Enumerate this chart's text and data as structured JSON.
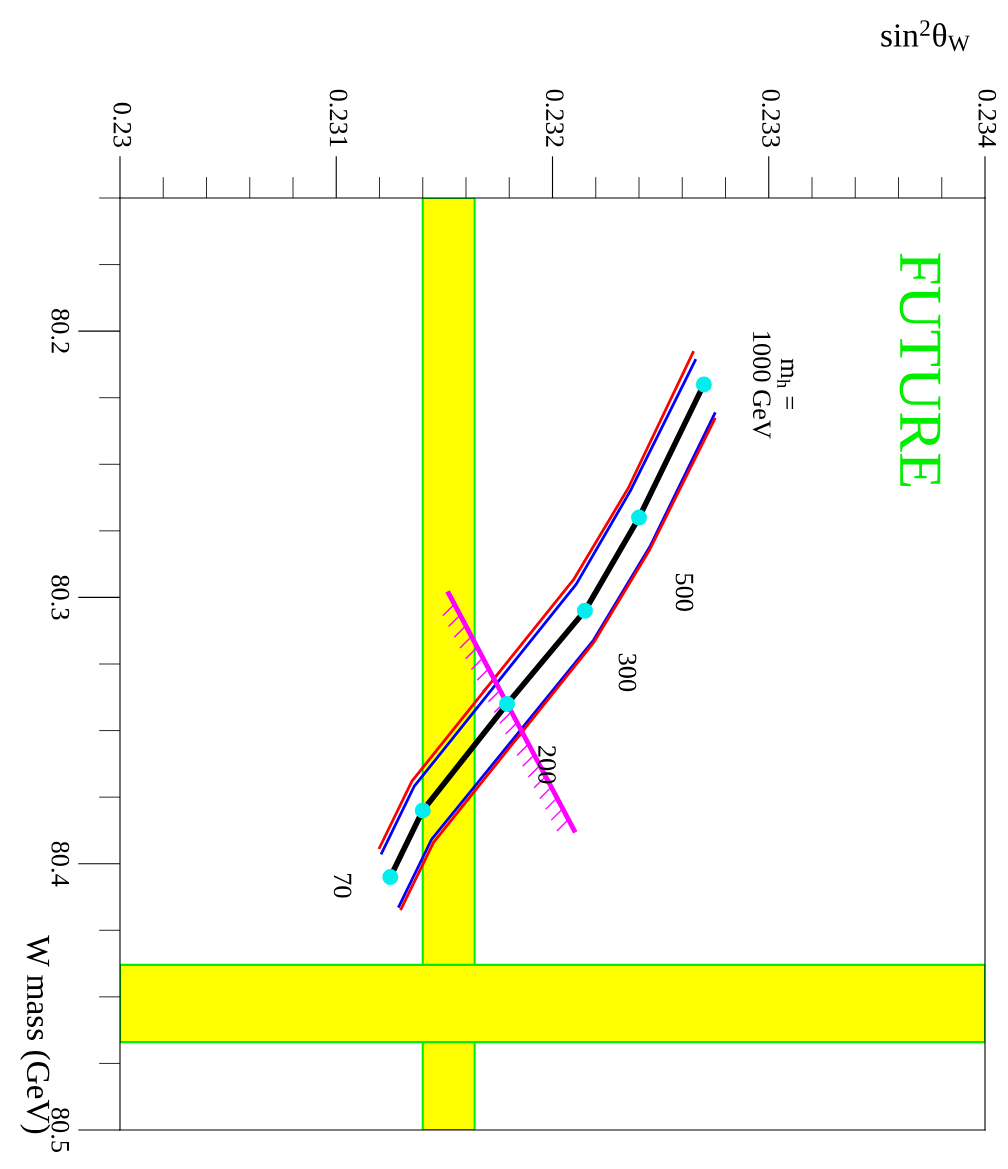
{
  "chart_data": {
    "type": "line",
    "xlabel": "sin$^{2}$θ$_{W}$",
    "ylabel": "W mass (GeV)",
    "xlim": [
      0.23,
      0.234
    ],
    "xticks": [
      0.23,
      0.231,
      0.232,
      0.233,
      0.234
    ],
    "ylim": [
      80.5,
      80.15
    ],
    "yticks": [
      80.2,
      80.3,
      80.4,
      80.5
    ],
    "tick_labels": "xy",
    "grid": false,
    "bands": [
      {
        "axis": "x",
        "from": 0.2314,
        "to": 0.23164,
        "color": "#ffff00"
      },
      {
        "axis": "y",
        "from": 80.438,
        "to": 80.467,
        "color": "#ffff00"
      }
    ],
    "series": [
      {
        "color": "#ff0000",
        "x": [
          0.23265,
          0.23235,
          0.2321,
          0.23135,
          0.2312
        ],
        "values": [
          80.208,
          80.259,
          80.293,
          80.369,
          80.394
        ]
      },
      {
        "color": "#0000ff",
        "x": [
          0.23266,
          0.23236,
          0.23211,
          0.23136,
          0.23121
        ],
        "values": [
          80.211,
          80.26,
          80.295,
          80.371,
          80.396
        ]
      },
      {
        "color": "#0000ff",
        "x": [
          0.23275,
          0.23245,
          0.23219,
          0.23144,
          0.23129
        ],
        "values": [
          80.231,
          80.281,
          80.316,
          80.391,
          80.416
        ]
      },
      {
        "color": "#ff0000",
        "x": [
          0.23275,
          0.23245,
          0.23219,
          0.23145,
          0.2313
        ],
        "values": [
          80.233,
          80.282,
          80.317,
          80.392,
          80.417
        ]
      },
      {
        "color": "#000000",
        "x": [
          0.23125,
          0.2314,
          0.23179,
          0.23215,
          0.2324,
          0.2327
        ],
        "values": [
          80.405,
          80.38,
          80.34,
          80.305,
          80.27,
          80.22
        ]
      },
      {
        "type": "scatter",
        "color": "#00eeee",
        "marker": "circle",
        "x": [
          0.23125,
          0.2314,
          0.23179,
          0.23215,
          0.2324,
          0.2327
        ],
        "values": [
          80.405,
          80.38,
          80.34,
          80.305,
          80.27,
          80.22
        ]
      },
      {
        "color": "#ff00ff",
        "x": [
          0.23152,
          0.2321
        ],
        "values": [
          80.2985,
          80.3874
        ]
      }
    ],
    "annotations": [
      {
        "text": "70",
        "x": 0.23125,
        "y": 80.405
      },
      "200",
      "300",
      "500",
      {
        "text": "m$_{h}$ =\n1000 GeV",
        "x": 0.2327,
        "y": 80.22
      },
      "FUTURE"
    ]
  }
}
